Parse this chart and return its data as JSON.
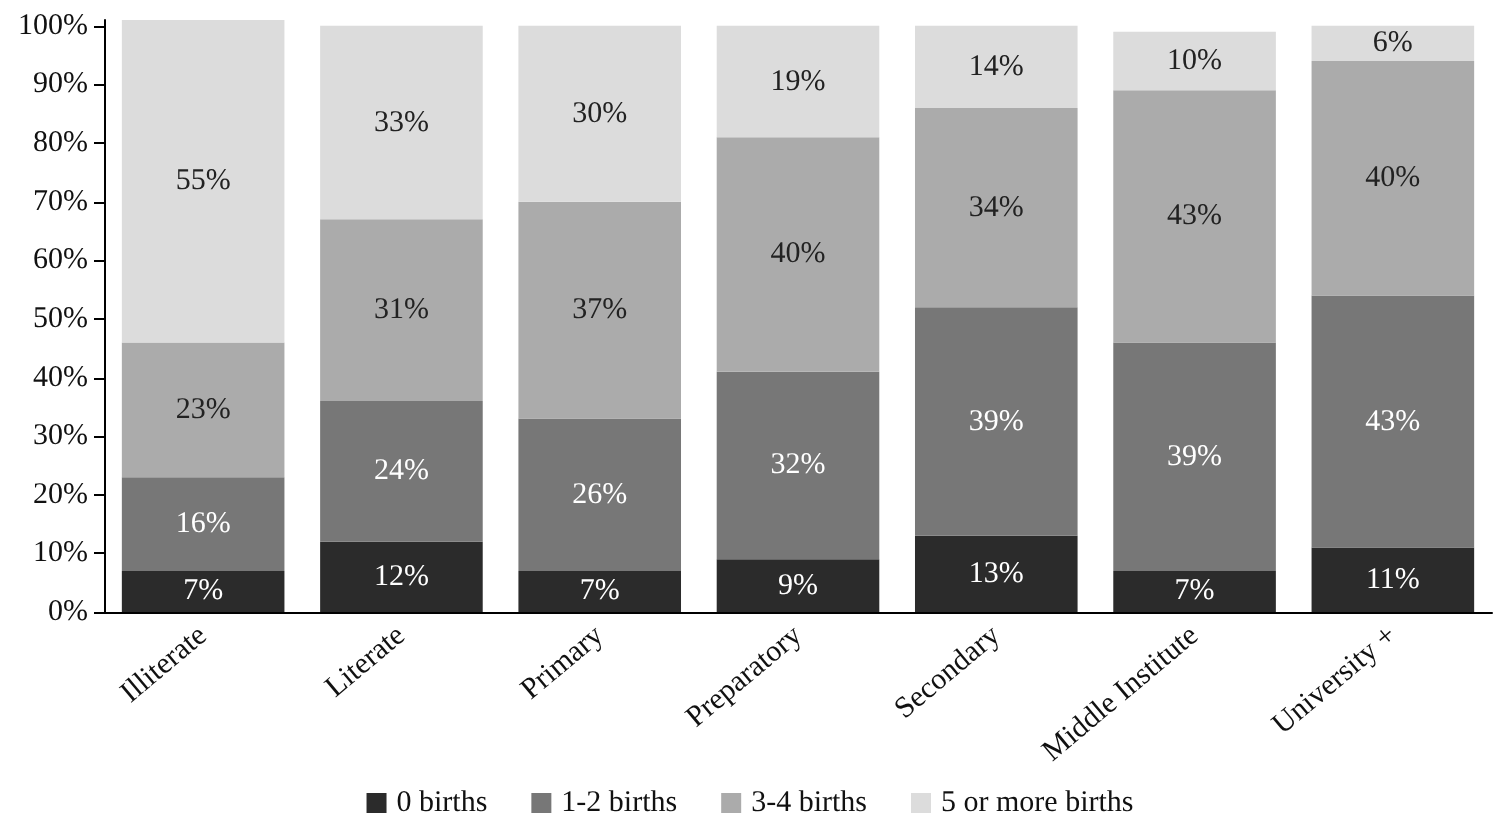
{
  "chart_data": {
    "type": "bar",
    "stacked": true,
    "categories": [
      "Illiterate",
      "Literate",
      "Primary",
      "Preparatory",
      "Secondary",
      "Middle Institute",
      "University +"
    ],
    "series": [
      {
        "name": "0 births",
        "color": "#2b2b2b",
        "values": [
          7,
          12,
          7,
          9,
          13,
          7,
          11
        ],
        "value_labels": [
          "7%",
          "12%",
          "7%",
          "9%",
          "13%",
          "7%",
          "11%"
        ]
      },
      {
        "name": "1-2 births",
        "color": "#777777",
        "values": [
          16,
          24,
          26,
          32,
          39,
          39,
          43
        ],
        "value_labels": [
          "16%",
          "24%",
          "26%",
          "32%",
          "39%",
          "39%",
          "43%"
        ]
      },
      {
        "name": "3-4 births",
        "color": "#ababab",
        "values": [
          23,
          31,
          37,
          40,
          34,
          43,
          40
        ],
        "value_labels": [
          "23%",
          "31%",
          "37%",
          "40%",
          "34%",
          "43%",
          "40%"
        ]
      },
      {
        "name": "5 or more births",
        "color": "#dcdcdc",
        "values": [
          55,
          33,
          30,
          19,
          14,
          10,
          6
        ],
        "value_labels": [
          "55%",
          "33%",
          "30%",
          "19%",
          "14%",
          "10%",
          "6%"
        ]
      }
    ],
    "ylim": [
      0,
      101
    ],
    "yticks": [
      {
        "value": 0,
        "label": "0%"
      },
      {
        "value": 10,
        "label": "10%"
      },
      {
        "value": 20,
        "label": "20%"
      },
      {
        "value": 30,
        "label": "30%"
      },
      {
        "value": 40,
        "label": "40%"
      },
      {
        "value": 50,
        "label": "50%"
      },
      {
        "value": 60,
        "label": "60%"
      },
      {
        "value": 70,
        "label": "70%"
      },
      {
        "value": 80,
        "label": "80%"
      },
      {
        "value": 90,
        "label": "90%"
      },
      {
        "value": 100,
        "label": "100%"
      }
    ],
    "grid": false,
    "legend": "bottom"
  }
}
